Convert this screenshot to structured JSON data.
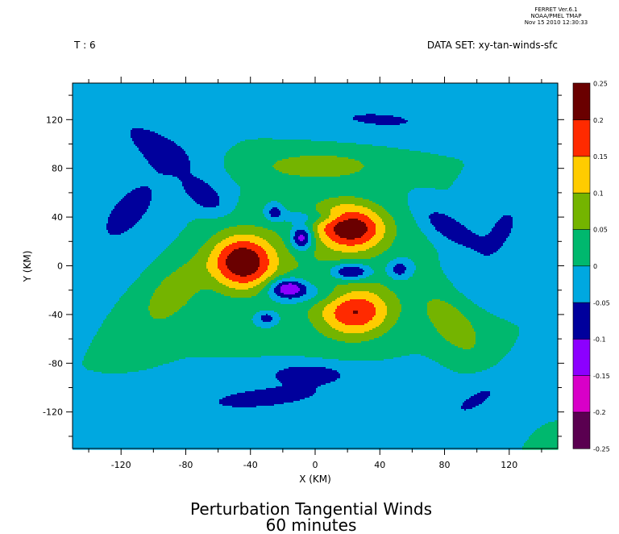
{
  "header": {
    "stamp_line1": "FERRET Ver.6.1",
    "stamp_line2": "NOAA/PMEL TMAP",
    "stamp_line3": "Nov 15 2010 12:30:33",
    "time_label": "T : 6",
    "dataset_label": "DATA SET: xy-tan-winds-sfc"
  },
  "footer": {
    "title_line1": "Perturbation Tangential Winds",
    "title_line2": "60 minutes"
  },
  "chart_data": {
    "type": "heatmap",
    "xlabel": "X (KM)",
    "ylabel": "Y (KM)",
    "xlim": [
      -150,
      150
    ],
    "ylim": [
      -150,
      150
    ],
    "x_ticks": [
      -120,
      -80,
      -40,
      0,
      40,
      80,
      120
    ],
    "y_ticks": [
      -120,
      -80,
      -40,
      0,
      40,
      80,
      120
    ],
    "colorbar": {
      "levels": [
        -0.25,
        -0.2,
        -0.15,
        -0.1,
        -0.05,
        0,
        0.05,
        0.1,
        0.15,
        0.2,
        0.25
      ],
      "labels": [
        "-0.25",
        "-0.2",
        "-0.15",
        "-0.1",
        "-0.05",
        "0",
        "0.05",
        "0.1",
        "0.15",
        "0.2",
        "0.25"
      ],
      "colors": [
        "#5a0050",
        "#d800c8",
        "#8c00ff",
        "#00009c",
        "#00a8e0",
        "#00b86e",
        "#74b400",
        "#ffcc00",
        "#ff2a00",
        "#6a0000"
      ]
    },
    "field": {
      "background_level": 0,
      "features": [
        {
          "x": 22,
          "y": 32,
          "sx": 22,
          "sy": 19,
          "rot": -15,
          "amp": 0.23
        },
        {
          "x": 25,
          "y": -38,
          "sx": 23,
          "sy": 21,
          "rot": 15,
          "amp": 0.19
        },
        {
          "x": -45,
          "y": 3,
          "sx": 20,
          "sy": 23,
          "rot": 0,
          "amp": 0.24
        },
        {
          "x": -8,
          "y": 23,
          "sx": 7,
          "sy": 10,
          "rot": 0,
          "amp": -0.17
        },
        {
          "x": -17,
          "y": -18,
          "sx": 11,
          "sy": 8,
          "rot": 0,
          "amp": -0.15
        },
        {
          "x": 22,
          "y": -5,
          "sx": 12,
          "sy": 7,
          "rot": 0,
          "amp": -0.15
        },
        {
          "x": -30,
          "y": -43,
          "sx": 6,
          "sy": 5,
          "rot": 0,
          "amp": -0.09
        },
        {
          "x": -25,
          "y": 44,
          "sx": 5,
          "sy": 6,
          "rot": 0,
          "amp": -0.09
        },
        {
          "x": 52,
          "y": -3,
          "sx": 7,
          "sy": 8,
          "rot": 0,
          "amp": -0.09
        },
        {
          "x": -68,
          "y": 57,
          "sx": 15,
          "sy": 9,
          "rot": -50,
          "amp": -0.09
        },
        {
          "x": 82,
          "y": 32,
          "sx": 20,
          "sy": 9,
          "rot": -45,
          "amp": -0.09
        },
        {
          "x": -5,
          "y": -88,
          "sx": 21,
          "sy": 7,
          "rot": 0,
          "amp": -0.08
        },
        {
          "x": 2,
          "y": 82,
          "sx": 36,
          "sy": 11,
          "rot": 0,
          "amp": 0.09
        },
        {
          "x": -88,
          "y": -23,
          "sx": 14,
          "sy": 30,
          "rot": -30,
          "amp": 0.09
        },
        {
          "x": 85,
          "y": -48,
          "sx": 14,
          "sy": 30,
          "rot": 30,
          "amp": 0.09
        },
        {
          "x": -115,
          "y": 45,
          "sx": 22,
          "sy": 52,
          "rot": -30,
          "amp": -0.06
        },
        {
          "x": 115,
          "y": 28,
          "sx": 18,
          "sy": 48,
          "rot": -20,
          "amp": -0.055
        },
        {
          "x": -30,
          "y": -108,
          "sx": 70,
          "sy": 16,
          "rot": 8,
          "amp": -0.06
        },
        {
          "x": 40,
          "y": 120,
          "sx": 55,
          "sy": 13,
          "rot": -5,
          "amp": -0.055
        },
        {
          "x": -100,
          "y": 100,
          "sx": 38,
          "sy": 14,
          "rot": -40,
          "amp": -0.06
        },
        {
          "x": 100,
          "y": -110,
          "sx": 38,
          "sy": 13,
          "rot": 40,
          "amp": -0.055
        },
        {
          "x": 0,
          "y": 40,
          "sx": 22,
          "sy": 6,
          "rot": 0,
          "amp": -0.065
        },
        {
          "x": -3,
          "y": -23,
          "sx": 26,
          "sy": 9,
          "rot": 0,
          "amp": -0.06
        },
        {
          "x": 0,
          "y": 3,
          "sx": 44,
          "sy": 44,
          "rot": 0,
          "amp": 0.04
        }
      ]
    }
  }
}
